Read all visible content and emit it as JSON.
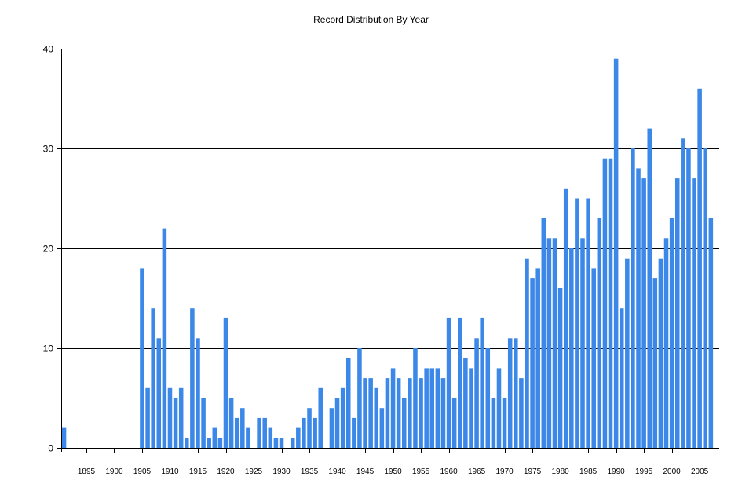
{
  "chart_data": {
    "type": "bar",
    "title": "Record Distribution By Year",
    "xlabel": "",
    "ylabel": "",
    "ylim": [
      0,
      40
    ],
    "yticks": [
      0,
      10,
      20,
      30,
      40
    ],
    "xticks": [
      1895,
      1900,
      1905,
      1910,
      1915,
      1920,
      1925,
      1930,
      1935,
      1940,
      1945,
      1950,
      1955,
      1960,
      1965,
      1970,
      1975,
      1980,
      1985,
      1990,
      1995,
      2000,
      2005
    ],
    "x_start": 1891,
    "x_end": 2008,
    "grid": "horizontal",
    "bar_color": "#3c88e8",
    "years": [
      1891,
      1905,
      1906,
      1907,
      1908,
      1909,
      1910,
      1911,
      1912,
      1913,
      1914,
      1915,
      1916,
      1917,
      1918,
      1919,
      1920,
      1921,
      1922,
      1923,
      1924,
      1926,
      1927,
      1928,
      1929,
      1930,
      1932,
      1933,
      1934,
      1935,
      1936,
      1937,
      1938,
      1939,
      1940,
      1941,
      1942,
      1943,
      1944,
      1945,
      1946,
      1947,
      1948,
      1949,
      1950,
      1951,
      1952,
      1953,
      1954,
      1955,
      1956,
      1957,
      1958,
      1959,
      1960,
      1961,
      1962,
      1963,
      1964,
      1965,
      1966,
      1967,
      1968,
      1969,
      1970,
      1971,
      1972,
      1973,
      1974,
      1975,
      1976,
      1977,
      1978,
      1979,
      1980,
      1981,
      1982,
      1983,
      1984,
      1985,
      1986,
      1987,
      1988,
      1989,
      1990,
      1991,
      1992,
      1993,
      1994,
      1995,
      1996,
      1997,
      1998,
      1999,
      2000,
      2001,
      2002,
      2003,
      2004,
      2005,
      2006,
      2007,
      2008
    ],
    "values": [
      2,
      18,
      6,
      14,
      11,
      22,
      6,
      5,
      6,
      1,
      14,
      11,
      5,
      1,
      2,
      1,
      13,
      5,
      3,
      4,
      2,
      3,
      3,
      2,
      1,
      1,
      1,
      2,
      3,
      4,
      3,
      6,
      0,
      4,
      5,
      6,
      9,
      3,
      10,
      7,
      7,
      6,
      4,
      7,
      8,
      7,
      5,
      7,
      10,
      7,
      8,
      8,
      8,
      7,
      13,
      5,
      13,
      9,
      8,
      11,
      13,
      10,
      5,
      8,
      5,
      11,
      11,
      7,
      19,
      17,
      18,
      23,
      21,
      21,
      16,
      26,
      20,
      25,
      21,
      25,
      18,
      23,
      29,
      29,
      39,
      14,
      19,
      30,
      28,
      27,
      32,
      17,
      19,
      21,
      23,
      27,
      31,
      30,
      27,
      36,
      30,
      23,
      0
    ]
  }
}
